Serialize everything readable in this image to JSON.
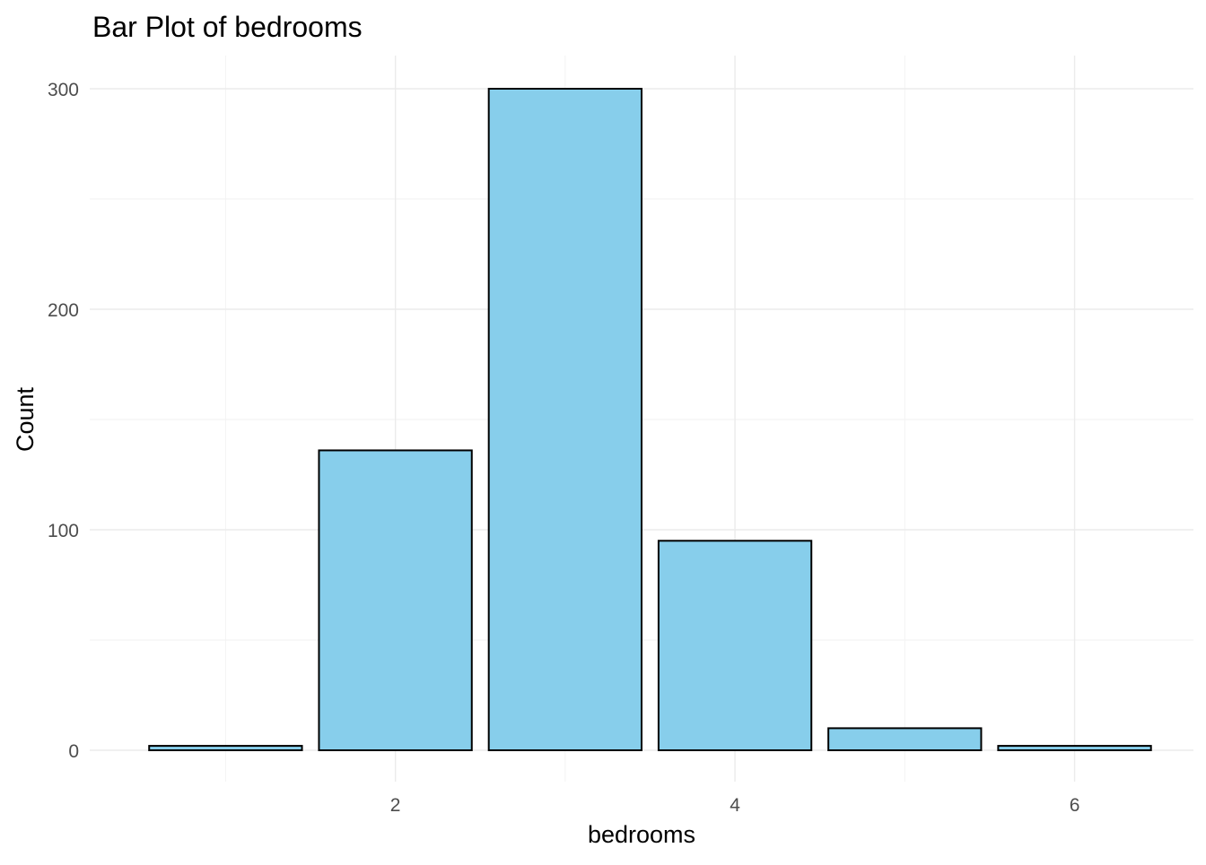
{
  "chart_data": {
    "type": "bar",
    "title": "Bar Plot of bedrooms",
    "xlabel": "bedrooms",
    "ylabel": "Count",
    "x": [
      1,
      2,
      3,
      4,
      5,
      6
    ],
    "values": [
      2,
      136,
      300,
      95,
      10,
      2
    ],
    "xlim": [
      0.5,
      6.5
    ],
    "ylim": [
      0,
      300
    ],
    "x_ticks": [
      2,
      4,
      6
    ],
    "x_tick_labels": [
      "2",
      "4",
      "6"
    ],
    "y_ticks": [
      0,
      100,
      200,
      300
    ],
    "y_tick_labels": [
      "0",
      "100",
      "200",
      "300"
    ],
    "grid": true,
    "bar_color": "#87CEEB",
    "bar_outline_color": "#000000"
  }
}
